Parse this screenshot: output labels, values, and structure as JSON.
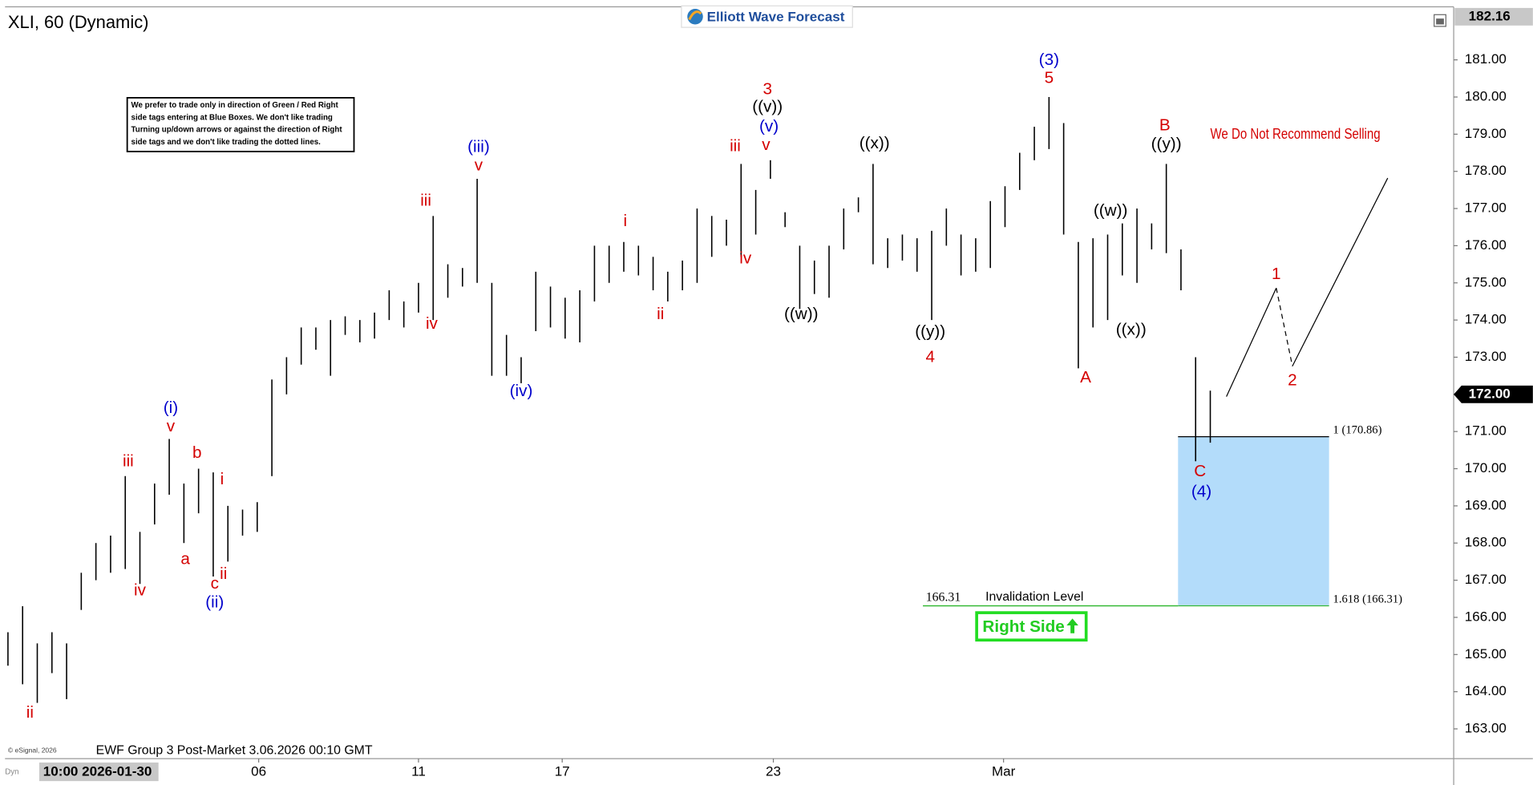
{
  "header": {
    "title": "XLI, 60 (Dynamic)",
    "logo": "Elliott Wave Forecast"
  },
  "notice": [
    "We prefer to trade only in direction of Green / Red Right",
    "side tags entering at Blue Boxes. We don't like trading",
    "Turning up/down arrows or against the direction of Right",
    "side tags and we don't like trading the dotted lines."
  ],
  "footer": {
    "source": "EWF Group 3 Post-Market 3.06.2026 00:10 GMT",
    "copyright": "© eSignal, 2026",
    "time_label": "10:00 2026-01-30"
  },
  "chart_data": {
    "type": "ohlc",
    "color": "#000000",
    "x": [
      0,
      1,
      2,
      3,
      4,
      5,
      6,
      7,
      8,
      9,
      10,
      11,
      12,
      13,
      14,
      15,
      16,
      17,
      18,
      19,
      20,
      21,
      22,
      23,
      24,
      25,
      26,
      27,
      28,
      29,
      30,
      31,
      32,
      33,
      34,
      35,
      36,
      37,
      38,
      39,
      40,
      41,
      42,
      43,
      44,
      45,
      46,
      47,
      48,
      49,
      50,
      51,
      52,
      53,
      54,
      55,
      56,
      57,
      58,
      59,
      60,
      61,
      62,
      63,
      64,
      65,
      66,
      67,
      68,
      69,
      70,
      71,
      72,
      73,
      74,
      75,
      76,
      77,
      78,
      79,
      80,
      81,
      82
    ],
    "high": [
      165.6,
      166.3,
      165.3,
      165.6,
      165.3,
      167.2,
      168,
      168.2,
      169.8,
      168.3,
      169.6,
      170.8,
      169.6,
      170,
      169.9,
      169,
      168.9,
      169.1,
      172.4,
      173,
      173.8,
      173.8,
      174,
      174.1,
      174,
      174.2,
      174.8,
      174.5,
      175,
      176.8,
      175.5,
      175.4,
      177.8,
      175,
      173.6,
      173,
      175.3,
      174.9,
      174.6,
      174.8,
      176,
      176,
      176.1,
      176,
      175.7,
      175.3,
      175.6,
      177,
      176.8,
      176.7,
      178.2,
      177.5,
      178.3,
      176.9,
      176,
      175.6,
      176,
      177,
      177.3,
      178.2,
      176.2,
      176.3,
      176.2,
      176.4,
      177,
      176.3,
      176.2,
      177.2,
      177.6,
      178.5,
      179.2,
      180,
      179.3,
      176.1,
      176.2,
      176.3,
      176.6,
      177,
      176.6,
      178.2,
      175.9,
      173,
      172.1
    ],
    "low": [
      164.7,
      164.2,
      163.7,
      164.5,
      163.8,
      166.2,
      167,
      167.2,
      167.3,
      166.9,
      168.5,
      169.3,
      168,
      168.8,
      167.1,
      167.5,
      168.2,
      168.3,
      169.8,
      172,
      172.8,
      173.2,
      172.5,
      173.6,
      173.4,
      173.5,
      174,
      173.8,
      174.2,
      174,
      174.6,
      174.9,
      175,
      172.5,
      172.5,
      172.3,
      173.7,
      173.8,
      173.5,
      173.4,
      174.5,
      175,
      175.3,
      175.2,
      174.8,
      174.5,
      174.8,
      175,
      175.7,
      176,
      175.7,
      176.3,
      177.8,
      176.5,
      174.3,
      174.7,
      174.6,
      175.9,
      176.9,
      175.5,
      175.4,
      175.6,
      175.3,
      174,
      176,
      175.2,
      175.3,
      175.4,
      176.5,
      177.5,
      178.3,
      178.6,
      176.3,
      172.7,
      173.8,
      174,
      175.2,
      175,
      175.9,
      175.8,
      174.8,
      170.2,
      170.7
    ],
    "xlim": [
      -0.2,
      98.6
    ],
    "xticks": [
      {
        "value": 17.1,
        "label": "06"
      },
      {
        "value": 28,
        "label": "11"
      },
      {
        "value": 37.8,
        "label": "17"
      },
      {
        "value": 52.2,
        "label": "23"
      },
      {
        "value": 67.9,
        "label": "Mar"
      }
    ],
    "ylim": [
      162.2,
      182.4
    ],
    "yticks": [
      {
        "value": 163,
        "label": "163.00"
      },
      {
        "value": 164,
        "label": "164.00"
      },
      {
        "value": 165,
        "label": "165.00"
      },
      {
        "value": 166,
        "label": "166.00"
      },
      {
        "value": 167,
        "label": "167.00"
      },
      {
        "value": 168,
        "label": "168.00"
      },
      {
        "value": 169,
        "label": "169.00"
      },
      {
        "value": 170,
        "label": "170.00"
      },
      {
        "value": 171,
        "label": "171.00"
      },
      {
        "value": 172,
        "label": "172.00"
      },
      {
        "value": 173,
        "label": "173.00"
      },
      {
        "value": 174,
        "label": "174.00"
      },
      {
        "value": 175,
        "label": "175.00"
      },
      {
        "value": 176,
        "label": "176.00"
      },
      {
        "value": 177,
        "label": "177.00"
      },
      {
        "value": 178,
        "label": "178.00"
      },
      {
        "value": 179,
        "label": "179.00"
      },
      {
        "value": 180,
        "label": "180.00"
      },
      {
        "value": 181,
        "label": "181.00"
      }
    ],
    "high_marker": {
      "value": 182.16,
      "label": "182.16"
    },
    "last_price": {
      "value": 172,
      "label": "172.00"
    },
    "annotations": [
      {
        "text": "ii",
        "color": "#d40000",
        "x": 1.5,
        "y": 163.42
      },
      {
        "text": "iii",
        "color": "#d40000",
        "x": 8.2,
        "y": 170.18
      },
      {
        "text": "v",
        "color": "#d40000",
        "x": 11.1,
        "y": 171.12
      },
      {
        "text": "(i)",
        "color": "#0000cc",
        "x": 11.1,
        "y": 171.62
      },
      {
        "text": "iv",
        "color": "#d40000",
        "x": 9.0,
        "y": 166.71
      },
      {
        "text": "a",
        "color": "#d40000",
        "x": 12.1,
        "y": 167.55
      },
      {
        "text": "b",
        "color": "#d40000",
        "x": 12.9,
        "y": 170.41
      },
      {
        "text": "i",
        "color": "#d40000",
        "x": 14.6,
        "y": 169.7
      },
      {
        "text": "c",
        "color": "#d40000",
        "x": 14.1,
        "y": 166.89
      },
      {
        "text": "ii",
        "color": "#d40000",
        "x": 14.7,
        "y": 167.15
      },
      {
        "text": "(ii)",
        "color": "#0000cc",
        "x": 14.1,
        "y": 166.39
      },
      {
        "text": "iii",
        "color": "#d40000",
        "x": 28.5,
        "y": 177.19
      },
      {
        "text": "iv",
        "color": "#d40000",
        "x": 28.9,
        "y": 173.88
      },
      {
        "text": "v",
        "color": "#d40000",
        "x": 32.1,
        "y": 178.14
      },
      {
        "text": "(iii)",
        "color": "#0000cc",
        "x": 32.1,
        "y": 178.64
      },
      {
        "text": "(iv)",
        "color": "#0000cc",
        "x": 35.0,
        "y": 172.07
      },
      {
        "text": "i",
        "color": "#d40000",
        "x": 42.1,
        "y": 176.64
      },
      {
        "text": "ii",
        "color": "#d40000",
        "x": 44.5,
        "y": 174.14
      },
      {
        "text": "iii",
        "color": "#d40000",
        "x": 49.6,
        "y": 178.66
      },
      {
        "text": "iv",
        "color": "#d40000",
        "x": 50.3,
        "y": 175.64
      },
      {
        "text": "v",
        "color": "#d40000",
        "x": 51.7,
        "y": 178.69
      },
      {
        "text": "(v)",
        "color": "#0000cc",
        "x": 51.9,
        "y": 179.19
      },
      {
        "text": "((v))",
        "color": "#000000",
        "x": 51.8,
        "y": 179.72
      },
      {
        "text": "3",
        "color": "#d40000",
        "x": 51.8,
        "y": 180.19
      },
      {
        "text": "((w))",
        "color": "#000000",
        "x": 54.1,
        "y": 174.14
      },
      {
        "text": "((x))",
        "color": "#000000",
        "x": 59.1,
        "y": 178.74
      },
      {
        "text": "((y))",
        "color": "#000000",
        "x": 62.9,
        "y": 173.67
      },
      {
        "text": "4",
        "color": "#d40000",
        "x": 62.9,
        "y": 172.99
      },
      {
        "text": "(3)",
        "color": "#0000cc",
        "x": 71.0,
        "y": 180.98
      },
      {
        "text": "5",
        "color": "#d40000",
        "x": 71.0,
        "y": 180.5
      },
      {
        "text": "A",
        "color": "#d40000",
        "x": 73.5,
        "y": 172.44
      },
      {
        "text": "((w))",
        "color": "#000000",
        "x": 75.2,
        "y": 176.93
      },
      {
        "text": "((x))",
        "color": "#000000",
        "x": 76.6,
        "y": 173.72
      },
      {
        "text": "B",
        "color": "#d40000",
        "x": 78.9,
        "y": 179.22
      },
      {
        "text": "((y))",
        "color": "#000000",
        "x": 79.0,
        "y": 178.72
      },
      {
        "text": "C",
        "color": "#d40000",
        "x": 81.3,
        "y": 169.91
      },
      {
        "text": "(4)",
        "color": "#0000cc",
        "x": 81.4,
        "y": 169.36
      },
      {
        "text": "1",
        "color": "#d40000",
        "x": 86.5,
        "y": 175.22
      },
      {
        "text": "2",
        "color": "#d40000",
        "x": 87.6,
        "y": 172.36
      }
    ],
    "projection": {
      "x": [
        83.1,
        86.5,
        87.6,
        94.1
      ],
      "y": [
        171.94,
        174.86,
        172.76,
        177.82
      ]
    },
    "target_box": {
      "x": [
        79.8,
        90.1
      ],
      "y": [
        166.31,
        170.86
      ],
      "color": "#b3dcfa",
      "top_label": "1 (170.86)",
      "bottom_label": "1.618 (166.31)"
    },
    "invalidation": {
      "value": 166.31,
      "text": "Invalidation Level",
      "x": [
        62.4,
        79.8
      ]
    },
    "right_side": "Right Side",
    "warning": "We Do Not Recommend Selling"
  }
}
